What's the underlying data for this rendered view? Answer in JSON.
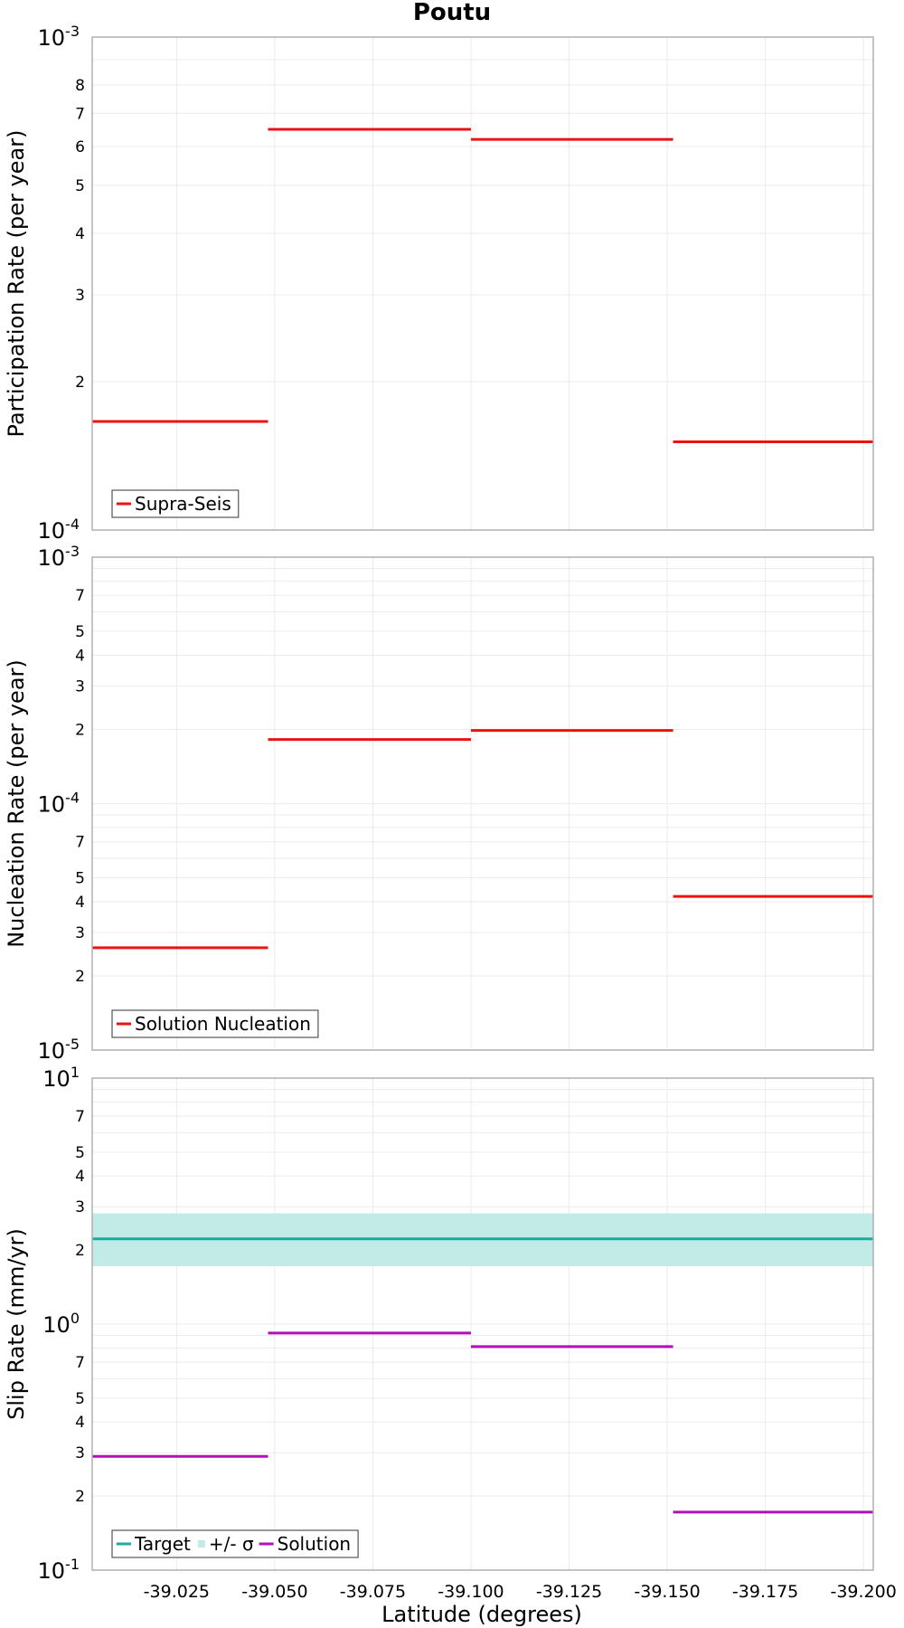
{
  "title": "Poutu",
  "xlabel": "Latitude (degrees)",
  "colors": {
    "red": "#ee1111",
    "teal": "#19aaa0",
    "band": "#c2ebe8",
    "magenta": "#b010b8",
    "grid": "#ebebeb",
    "frame": "#b0b0b0"
  },
  "chart_data": [
    {
      "type": "line",
      "subtype": "step-segments",
      "ylabel": "Participation Rate (per year)",
      "yscale": "log",
      "ylim": [
        0.0001,
        0.001
      ],
      "xlim": [
        -39.0035,
        -39.2025
      ],
      "x_ticks": [
        -39.025,
        -39.05,
        -39.075,
        -39.1,
        -39.125,
        -39.15,
        -39.175,
        -39.2
      ],
      "x_tick_labels": [],
      "y_major_ticks": [
        {
          "value": 0.0001,
          "mantissa": "10",
          "exp": "-4"
        },
        {
          "value": 0.001,
          "mantissa": "10",
          "exp": "-3"
        }
      ],
      "y_minor_ticks": [
        {
          "value": 0.0002,
          "label": "2"
        },
        {
          "value": 0.0003,
          "label": "3"
        },
        {
          "value": 0.0004,
          "label": "4"
        },
        {
          "value": 0.0005,
          "label": "5"
        },
        {
          "value": 0.0006,
          "label": "6"
        },
        {
          "value": 0.0007,
          "label": "7"
        },
        {
          "value": 0.0008,
          "label": "8"
        }
      ],
      "grid": true,
      "legend_position": "bottom-left",
      "legend": [
        {
          "label": "Supra-Seis",
          "type": "line",
          "color": "#ee1111"
        }
      ],
      "series": [
        {
          "name": "Supra-Seis",
          "color": "#ee1111",
          "segments": [
            {
              "x_start": -39.0035,
              "x_end": -39.0483,
              "y": 0.000166
            },
            {
              "x_start": -39.0483,
              "x_end": -39.1,
              "y": 0.00065
            },
            {
              "x_start": -39.1,
              "x_end": -39.1515,
              "y": 0.00062
            },
            {
              "x_start": -39.1515,
              "x_end": -39.2025,
              "y": 0.000151
            }
          ]
        }
      ]
    },
    {
      "type": "line",
      "subtype": "step-segments",
      "ylabel": "Nucleation Rate (per year)",
      "yscale": "log",
      "ylim": [
        1e-05,
        0.001
      ],
      "xlim": [
        -39.0035,
        -39.2025
      ],
      "x_ticks": [
        -39.025,
        -39.05,
        -39.075,
        -39.1,
        -39.125,
        -39.15,
        -39.175,
        -39.2
      ],
      "x_tick_labels": [],
      "y_major_ticks": [
        {
          "value": 1e-05,
          "mantissa": "10",
          "exp": "-5"
        },
        {
          "value": 0.0001,
          "mantissa": "10",
          "exp": "-4"
        },
        {
          "value": 0.001,
          "mantissa": "10",
          "exp": "-3"
        }
      ],
      "y_minor_ticks": [
        {
          "value": 2e-05,
          "label": "2"
        },
        {
          "value": 3e-05,
          "label": "3"
        },
        {
          "value": 4e-05,
          "label": "4"
        },
        {
          "value": 5e-05,
          "label": "5"
        },
        {
          "value": 7e-05,
          "label": "7"
        },
        {
          "value": 0.0002,
          "label": "2"
        },
        {
          "value": 0.0003,
          "label": "3"
        },
        {
          "value": 0.0004,
          "label": "4"
        },
        {
          "value": 0.0005,
          "label": "5"
        },
        {
          "value": 0.0007,
          "label": "7"
        }
      ],
      "grid": true,
      "legend_position": "bottom-left",
      "legend": [
        {
          "label": "Solution Nucleation",
          "type": "line",
          "color": "#ee1111"
        }
      ],
      "series": [
        {
          "name": "Solution Nucleation",
          "color": "#ee1111",
          "segments": [
            {
              "x_start": -39.0035,
              "x_end": -39.0483,
              "y": 2.6e-05
            },
            {
              "x_start": -39.0483,
              "x_end": -39.1,
              "y": 0.000182
            },
            {
              "x_start": -39.1,
              "x_end": -39.1515,
              "y": 0.000198
            },
            {
              "x_start": -39.1515,
              "x_end": -39.2025,
              "y": 4.2e-05
            }
          ]
        }
      ]
    },
    {
      "type": "line",
      "subtype": "step-segments",
      "ylabel": "Slip Rate (mm/yr)",
      "yscale": "log",
      "ylim": [
        0.1,
        10
      ],
      "xlim": [
        -39.0035,
        -39.2025
      ],
      "x_ticks": [
        -39.025,
        -39.05,
        -39.075,
        -39.1,
        -39.125,
        -39.15,
        -39.175,
        -39.2
      ],
      "x_tick_labels": [
        "-39.025",
        "-39.050",
        "-39.075",
        "-39.100",
        "-39.125",
        "-39.150",
        "-39.175",
        "-39.200"
      ],
      "y_major_ticks": [
        {
          "value": 0.1,
          "mantissa": "10",
          "exp": "-1"
        },
        {
          "value": 1,
          "mantissa": "10",
          "exp": "0"
        },
        {
          "value": 10,
          "mantissa": "10",
          "exp": "1"
        }
      ],
      "y_minor_ticks": [
        {
          "value": 0.2,
          "label": "2"
        },
        {
          "value": 0.3,
          "label": "3"
        },
        {
          "value": 0.4,
          "label": "4"
        },
        {
          "value": 0.5,
          "label": "5"
        },
        {
          "value": 0.7,
          "label": "7"
        },
        {
          "value": 2,
          "label": "2"
        },
        {
          "value": 3,
          "label": "3"
        },
        {
          "value": 4,
          "label": "4"
        },
        {
          "value": 5,
          "label": "5"
        },
        {
          "value": 7,
          "label": "7"
        }
      ],
      "grid": true,
      "legend_position": "bottom-left",
      "legend": [
        {
          "label": "Target",
          "type": "line",
          "color": "#19aaa0"
        },
        {
          "label": "+/- σ",
          "type": "band",
          "color": "#c2ebe8"
        },
        {
          "label": "Solution",
          "type": "line",
          "color": "#b010b8"
        }
      ],
      "band": {
        "name": "+/- σ",
        "color": "#c2ebe8",
        "y_low": 1.72,
        "y_high": 2.82
      },
      "series": [
        {
          "name": "Target",
          "color": "#19aaa0",
          "segments": [
            {
              "x_start": -39.0035,
              "x_end": -39.2025,
              "y": 2.22
            }
          ]
        },
        {
          "name": "Solution",
          "color": "#b010b8",
          "segments": [
            {
              "x_start": -39.0035,
              "x_end": -39.0483,
              "y": 0.29
            },
            {
              "x_start": -39.0483,
              "x_end": -39.1,
              "y": 0.92
            },
            {
              "x_start": -39.1,
              "x_end": -39.1515,
              "y": 0.81
            },
            {
              "x_start": -39.1515,
              "x_end": -39.2025,
              "y": 0.172
            }
          ]
        }
      ]
    }
  ]
}
